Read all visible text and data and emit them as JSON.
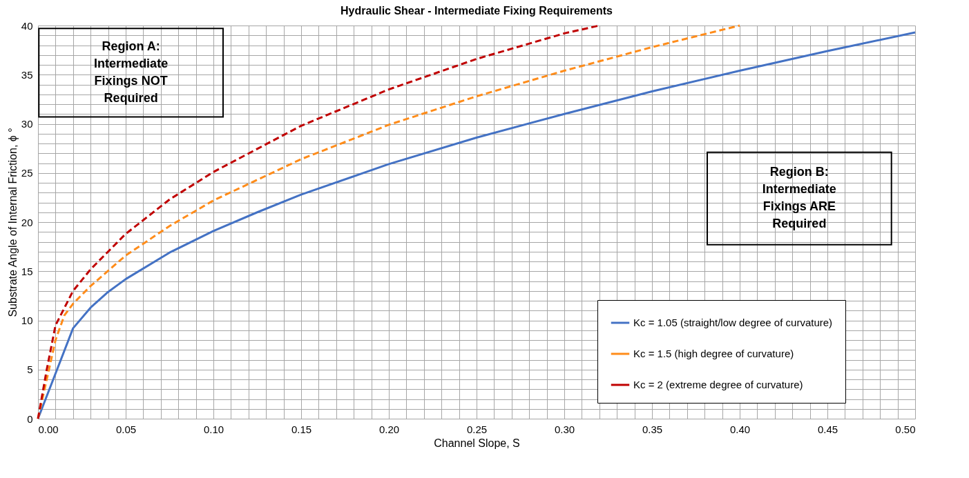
{
  "chart_data": {
    "type": "line",
    "title": "Hydraulic Shear - Intermediate Fixing Requirements",
    "xlabel": "Channel Slope, S",
    "ylabel": "Substrate Angle of Internal Friction, ϕ °",
    "series": [
      {
        "name": "Kc = 1.05 (straight/low degree of curvature)",
        "color": "#4472c4",
        "line_style": "solid",
        "x": [
          0,
          0.01,
          0.02,
          0.03,
          0.04,
          0.05,
          0.075,
          0.1,
          0.125,
          0.15,
          0.2,
          0.25,
          0.3,
          0.35,
          0.4,
          0.45,
          0.5
        ],
        "values": [
          0,
          4.6,
          9.2,
          11.3,
          12.9,
          14.2,
          16.9,
          19.1,
          21.0,
          22.8,
          25.9,
          28.6,
          31.0,
          33.3,
          35.4,
          37.4,
          39.3
        ]
      },
      {
        "name": "Kc = 1.5 (high degree of curvature)",
        "color": "#ff8c1a",
        "line_style": "dashed",
        "x": [
          0,
          0.005,
          0.01,
          0.015,
          0.02,
          0.03,
          0.05,
          0.075,
          0.1,
          0.15,
          0.2,
          0.25,
          0.3,
          0.35,
          0.4
        ],
        "values": [
          0,
          4.0,
          8.0,
          10.5,
          11.7,
          13.5,
          16.6,
          19.6,
          22.2,
          26.4,
          29.9,
          32.8,
          35.4,
          37.8,
          40
        ]
      },
      {
        "name": "Kc = 2 (extreme degree of curvature)",
        "color": "#c00000",
        "line_style": "dashed",
        "x": [
          0,
          0.005,
          0.01,
          0.02,
          0.03,
          0.05,
          0.075,
          0.1,
          0.15,
          0.2,
          0.25,
          0.3,
          0.32
        ],
        "values": [
          0,
          5.0,
          9.5,
          13.0,
          15.2,
          18.8,
          22.3,
          25.1,
          29.8,
          33.5,
          36.6,
          39.2,
          40
        ]
      }
    ],
    "xlim": [
      0,
      0.5
    ],
    "ylim": [
      0,
      40
    ],
    "xticks": [
      {
        "value": 0,
        "label": "0.00"
      },
      {
        "value": 0.01,
        "label": null
      },
      {
        "value": 0.02,
        "label": null
      },
      {
        "value": 0.03,
        "label": null
      },
      {
        "value": 0.04,
        "label": null
      },
      {
        "value": 0.05,
        "label": "0.05"
      },
      {
        "value": 0.06,
        "label": null
      },
      {
        "value": 0.07,
        "label": null
      },
      {
        "value": 0.08,
        "label": null
      },
      {
        "value": 0.09,
        "label": null
      },
      {
        "value": 0.1,
        "label": "0.10"
      },
      {
        "value": 0.11,
        "label": null
      },
      {
        "value": 0.12,
        "label": null
      },
      {
        "value": 0.13,
        "label": null
      },
      {
        "value": 0.14,
        "label": null
      },
      {
        "value": 0.15,
        "label": "0.15"
      },
      {
        "value": 0.16,
        "label": null
      },
      {
        "value": 0.17,
        "label": null
      },
      {
        "value": 0.18,
        "label": null
      },
      {
        "value": 0.19,
        "label": null
      },
      {
        "value": 0.2,
        "label": "0.20"
      },
      {
        "value": 0.21,
        "label": null
      },
      {
        "value": 0.22,
        "label": null
      },
      {
        "value": 0.23,
        "label": null
      },
      {
        "value": 0.24,
        "label": null
      },
      {
        "value": 0.25,
        "label": "0.25"
      },
      {
        "value": 0.26,
        "label": null
      },
      {
        "value": 0.27,
        "label": null
      },
      {
        "value": 0.28,
        "label": null
      },
      {
        "value": 0.29,
        "label": null
      },
      {
        "value": 0.3,
        "label": "0.30"
      },
      {
        "value": 0.31,
        "label": null
      },
      {
        "value": 0.32,
        "label": null
      },
      {
        "value": 0.33,
        "label": null
      },
      {
        "value": 0.34,
        "label": null
      },
      {
        "value": 0.35,
        "label": "0.35"
      },
      {
        "value": 0.36,
        "label": null
      },
      {
        "value": 0.37,
        "label": null
      },
      {
        "value": 0.38,
        "label": null
      },
      {
        "value": 0.39,
        "label": null
      },
      {
        "value": 0.4,
        "label": "0.40"
      },
      {
        "value": 0.41,
        "label": null
      },
      {
        "value": 0.42,
        "label": null
      },
      {
        "value": 0.43,
        "label": null
      },
      {
        "value": 0.44,
        "label": null
      },
      {
        "value": 0.45,
        "label": "0.45"
      },
      {
        "value": 0.46,
        "label": null
      },
      {
        "value": 0.47,
        "label": null
      },
      {
        "value": 0.48,
        "label": null
      },
      {
        "value": 0.49,
        "label": null
      },
      {
        "value": 0.5,
        "label": "0.50"
      }
    ],
    "yticks": [
      0,
      {
        "value": 1,
        "label": null
      },
      {
        "value": 2,
        "label": null
      },
      {
        "value": 3,
        "label": null
      },
      {
        "value": 4,
        "label": null
      },
      5,
      {
        "value": 6,
        "label": null
      },
      {
        "value": 7,
        "label": null
      },
      {
        "value": 8,
        "label": null
      },
      {
        "value": 9,
        "label": null
      },
      10,
      {
        "value": 11,
        "label": null
      },
      {
        "value": 12,
        "label": null
      },
      {
        "value": 13,
        "label": null
      },
      {
        "value": 14,
        "label": null
      },
      15,
      {
        "value": 16,
        "label": null
      },
      {
        "value": 17,
        "label": null
      },
      {
        "value": 18,
        "label": null
      },
      {
        "value": 19,
        "label": null
      },
      20,
      {
        "value": 21,
        "label": null
      },
      {
        "value": 22,
        "label": null
      },
      {
        "value": 23,
        "label": null
      },
      {
        "value": 24,
        "label": null
      },
      25,
      {
        "value": 26,
        "label": null
      },
      {
        "value": 27,
        "label": null
      },
      {
        "value": 28,
        "label": null
      },
      {
        "value": 29,
        "label": null
      },
      30,
      {
        "value": 31,
        "label": null
      },
      {
        "value": 32,
        "label": null
      },
      {
        "value": 33,
        "label": null
      },
      {
        "value": 34,
        "label": null
      },
      35,
      {
        "value": 36,
        "label": null
      },
      {
        "value": 37,
        "label": null
      },
      {
        "value": 38,
        "label": null
      },
      {
        "value": 39,
        "label": null
      },
      40
    ],
    "grid": true,
    "legend": "bottom right",
    "marker": "none",
    "annotations": [
      "Region A:\nIntermediate\nFixings NOT\nRequired",
      "Region B:\nIntermediate\nFixings ARE\nRequired"
    ]
  }
}
